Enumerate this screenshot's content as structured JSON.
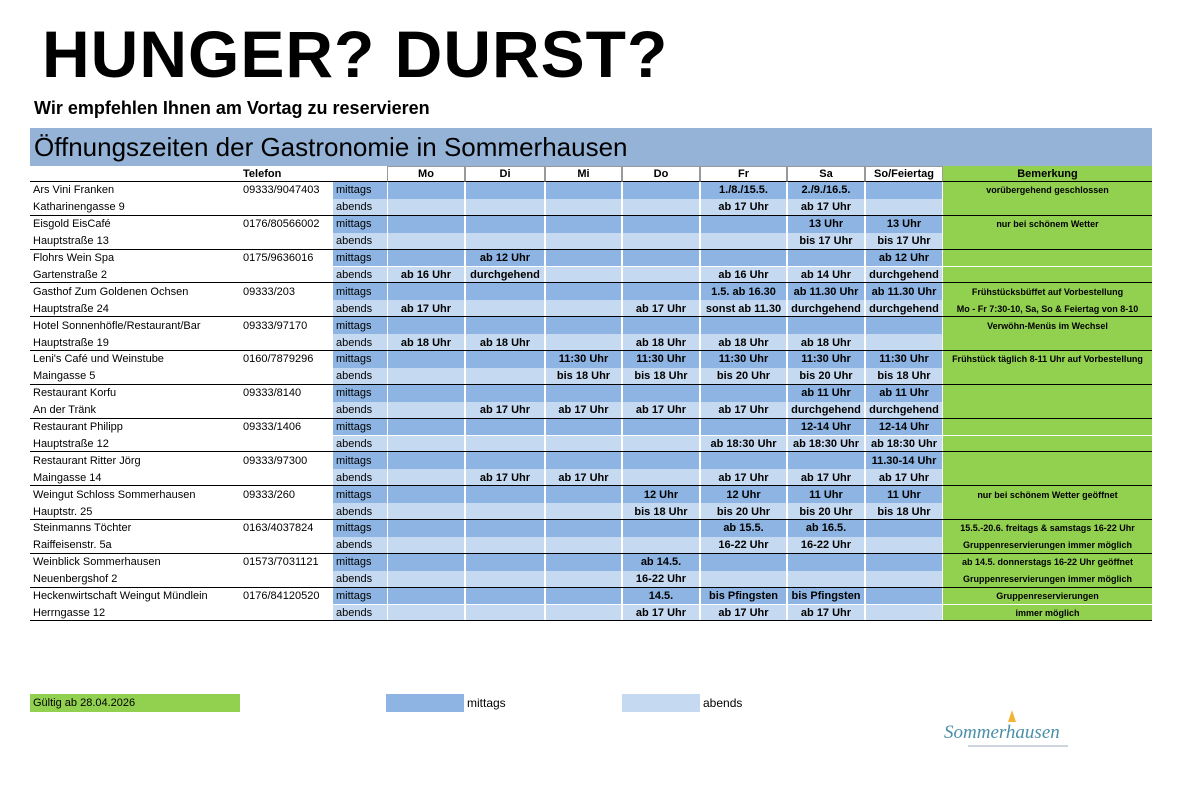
{
  "header": {
    "title": "HUNGER? DURST?",
    "subtitle": "Wir empfehlen Ihnen am Vortag zu reservieren"
  },
  "table": {
    "title": "Öffnungszeiten der Gastronomie in Sommerhausen",
    "columns": {
      "phone": "Telefon",
      "days": [
        "Mo",
        "Di",
        "Mi",
        "Do",
        "Fr",
        "Sa",
        "So/Feiertag"
      ],
      "remark": "Bemerkung"
    },
    "rows": [
      {
        "name": "Ars Vini Franken",
        "address": "Katharinengasse 9",
        "phone": "09333/9047403",
        "shifts": [
          {
            "label": "mittags",
            "times": [
              null,
              null,
              null,
              null,
              "1./8./15.5.",
              "2./9./16.5.",
              null
            ],
            "remark": "vorübergehend geschlossen"
          },
          {
            "label": "abends",
            "times": [
              null,
              null,
              null,
              null,
              "ab 17 Uhr",
              "ab 17 Uhr",
              null
            ],
            "remark": null
          }
        ]
      },
      {
        "name": "Eisgold EisCafé",
        "address": "Hauptstraße 13",
        "phone": "0176/80566002",
        "shifts": [
          {
            "label": "mittags",
            "times": [
              null,
              null,
              null,
              null,
              null,
              "13 Uhr",
              "13 Uhr"
            ],
            "remark": "nur bei schönem Wetter"
          },
          {
            "label": "abends",
            "times": [
              null,
              null,
              null,
              null,
              null,
              "bis 17 Uhr",
              "bis 17 Uhr"
            ],
            "remark": null
          }
        ]
      },
      {
        "name": "Flohrs Wein Spa",
        "address": "Gartenstraße 2",
        "phone": "0175/9636016",
        "shifts": [
          {
            "label": "mittags",
            "times": [
              null,
              "ab 12 Uhr",
              null,
              null,
              null,
              null,
              "ab 12 Uhr"
            ],
            "remark": null
          },
          {
            "label": "abends",
            "times": [
              "ab 16 Uhr",
              "durchgehend",
              null,
              null,
              "ab 16 Uhr",
              "ab 14 Uhr",
              "durchgehend"
            ],
            "remark": null
          }
        ]
      },
      {
        "name": "Gasthof Zum Goldenen Ochsen",
        "address": "Hauptstraße 24",
        "phone": "09333/203",
        "shifts": [
          {
            "label": "mittags",
            "times": [
              null,
              null,
              null,
              null,
              "1.5. ab 16.30",
              "ab 11.30 Uhr",
              "ab 11.30 Uhr"
            ],
            "remark": "Frühstücksbüffet auf Vorbestellung"
          },
          {
            "label": "abends",
            "times": [
              "ab 17 Uhr",
              null,
              null,
              "ab 17 Uhr",
              "sonst ab 11.30",
              "durchgehend",
              "durchgehend"
            ],
            "remark": "Mo - Fr 7:30-10, Sa, So & Feiertag von 8-10"
          }
        ]
      },
      {
        "name": "Hotel Sonnenhöfle/Restaurant/Bar",
        "address": "Hauptstraße 19",
        "phone": "09333/97170",
        "shifts": [
          {
            "label": "mittags",
            "times": [
              null,
              null,
              null,
              null,
              null,
              null,
              null
            ],
            "remark": "Verwöhn-Menüs im Wechsel"
          },
          {
            "label": "abends",
            "times": [
              "ab 18 Uhr",
              "ab 18 Uhr",
              null,
              "ab 18 Uhr",
              "ab 18 Uhr",
              "ab 18 Uhr",
              null
            ],
            "remark": null
          }
        ]
      },
      {
        "name": "Leni's Café und Weinstube",
        "address": "Maingasse 5",
        "phone": "0160/7879296",
        "shifts": [
          {
            "label": "mittags",
            "times": [
              null,
              null,
              "11:30 Uhr",
              "11:30 Uhr",
              "11:30 Uhr",
              "11:30 Uhr",
              "11:30 Uhr"
            ],
            "remark": "Frühstück täglich 8-11 Uhr auf Vorbestellung"
          },
          {
            "label": "abends",
            "times": [
              null,
              null,
              "bis 18 Uhr",
              "bis 18 Uhr",
              "bis 20 Uhr",
              "bis 20 Uhr",
              "bis 18 Uhr"
            ],
            "remark": null
          }
        ]
      },
      {
        "name": "Restaurant Korfu",
        "address": "An der Tränk",
        "phone": "09333/8140",
        "shifts": [
          {
            "label": "mittags",
            "times": [
              null,
              null,
              null,
              null,
              null,
              "ab 11 Uhr",
              "ab 11 Uhr"
            ],
            "remark": null
          },
          {
            "label": "abends",
            "times": [
              null,
              "ab 17 Uhr",
              "ab 17 Uhr",
              "ab 17 Uhr",
              "ab 17 Uhr",
              "durchgehend",
              "durchgehend"
            ],
            "remark": null
          }
        ]
      },
      {
        "name": "Restaurant Philipp",
        "address": "Hauptstraße 12",
        "phone": "09333/1406",
        "shifts": [
          {
            "label": "mittags",
            "times": [
              null,
              null,
              null,
              null,
              null,
              "12-14 Uhr",
              "12-14 Uhr"
            ],
            "remark": null
          },
          {
            "label": "abends",
            "times": [
              null,
              null,
              null,
              null,
              "ab 18:30 Uhr",
              "ab 18:30 Uhr",
              "ab 18:30 Uhr"
            ],
            "remark": null
          }
        ]
      },
      {
        "name": "Restaurant Ritter Jörg",
        "address": "Maingasse 14",
        "phone": "09333/97300",
        "shifts": [
          {
            "label": "mittags",
            "times": [
              null,
              null,
              null,
              null,
              null,
              null,
              "11.30-14 Uhr"
            ],
            "remark": null
          },
          {
            "label": "abends",
            "times": [
              null,
              "ab 17 Uhr",
              "ab 17 Uhr",
              null,
              "ab 17 Uhr",
              "ab 17 Uhr",
              "ab 17 Uhr"
            ],
            "remark": null
          }
        ]
      },
      {
        "name": "Weingut Schloss Sommerhausen",
        "address": "Hauptstr. 25",
        "phone": "09333/260",
        "shifts": [
          {
            "label": "mittags",
            "times": [
              null,
              null,
              null,
              "12 Uhr",
              "12 Uhr",
              "11 Uhr",
              "11 Uhr"
            ],
            "remark": "nur bei schönem Wetter geöffnet"
          },
          {
            "label": "abends",
            "times": [
              null,
              null,
              null,
              "bis 18 Uhr",
              "bis 20 Uhr",
              "bis 20 Uhr",
              "bis 18 Uhr"
            ],
            "remark": null
          }
        ]
      },
      {
        "name": "Steinmanns Töchter",
        "address": "Raiffeisenstr. 5a",
        "phone": "0163/4037824",
        "shifts": [
          {
            "label": "mittags",
            "times": [
              null,
              null,
              null,
              null,
              "ab 15.5.",
              "ab 16.5.",
              null
            ],
            "remark": "15.5.-20.6. freitags & samstags 16-22 Uhr"
          },
          {
            "label": "abends",
            "times": [
              null,
              null,
              null,
              null,
              "16-22 Uhr",
              "16-22 Uhr",
              null
            ],
            "remark": "Gruppenreservierungen immer möglich"
          }
        ]
      },
      {
        "name": "Weinblick Sommerhausen",
        "address": "Neuenbergshof 2",
        "phone": "01573/7031121",
        "shifts": [
          {
            "label": "mittags",
            "times": [
              null,
              null,
              null,
              "ab 14.5.",
              null,
              null,
              null
            ],
            "remark": "ab 14.5. donnerstags 16-22 Uhr geöffnet"
          },
          {
            "label": "abends",
            "times": [
              null,
              null,
              null,
              "16-22 Uhr",
              null,
              null,
              null
            ],
            "remark": "Gruppenreservierungen immer möglich"
          }
        ]
      },
      {
        "name": "Heckenwirtschaft Weingut Mündlein",
        "address": "Herrngasse 12",
        "phone": "0176/84120520",
        "shifts": [
          {
            "label": "mittags",
            "times": [
              null,
              null,
              null,
              "14.5.",
              "bis Pfingsten",
              "bis Pfingsten",
              null
            ],
            "remark": "Gruppenreservierungen"
          },
          {
            "label": "abends",
            "times": [
              null,
              null,
              null,
              "ab 17 Uhr",
              "ab 17 Uhr",
              "ab 17 Uhr",
              null
            ],
            "remark": "immer möglich"
          }
        ]
      }
    ]
  },
  "legend": {
    "valid": "Gültig ab 28.04.2026",
    "mittags": "mittags",
    "abends": "abends"
  },
  "logo": {
    "text": "Sommerhausen"
  }
}
